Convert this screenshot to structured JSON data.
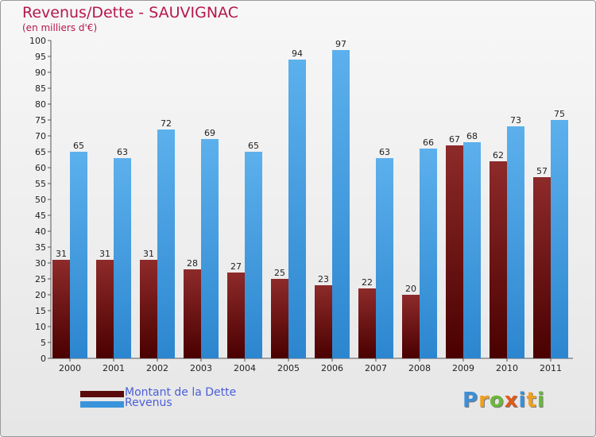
{
  "header": {
    "title": "Revenus/Dette - SAUVIGNAC",
    "subtitle": "(en milliers d'€)"
  },
  "chart_data": {
    "type": "bar",
    "categories": [
      "2000",
      "2001",
      "2002",
      "2003",
      "2004",
      "2005",
      "2006",
      "2007",
      "2008",
      "2009",
      "2010",
      "2011"
    ],
    "series": [
      {
        "name": "Montant de la Dette",
        "color": "#7a1414",
        "values": [
          31,
          31,
          31,
          28,
          27,
          25,
          23,
          22,
          20,
          67,
          62,
          57
        ]
      },
      {
        "name": "Revenus",
        "color": "#4aa3e6",
        "values": [
          65,
          63,
          72,
          69,
          65,
          94,
          97,
          63,
          66,
          68,
          73,
          75
        ]
      }
    ],
    "ylim": [
      0,
      100
    ],
    "y_ticks": [
      0,
      5,
      10,
      15,
      20,
      25,
      30,
      35,
      40,
      45,
      50,
      55,
      60,
      65,
      70,
      75,
      80,
      85,
      90,
      95,
      100
    ],
    "grid": false,
    "legend_position": "bottom-left"
  },
  "legend": [
    {
      "label": "Montant de la Dette",
      "color": "#7a1414"
    },
    {
      "label": "Revenus",
      "color": "#4aa3e6"
    }
  ],
  "logo": {
    "letters": [
      "P",
      "r",
      "o",
      "x",
      "i",
      "t",
      "i"
    ],
    "colors": [
      "#3b8fd8",
      "#f0a020",
      "#6ab83a",
      "#e05a1a",
      "#3b8fd8",
      "#f0a020",
      "#6ab83a"
    ]
  }
}
